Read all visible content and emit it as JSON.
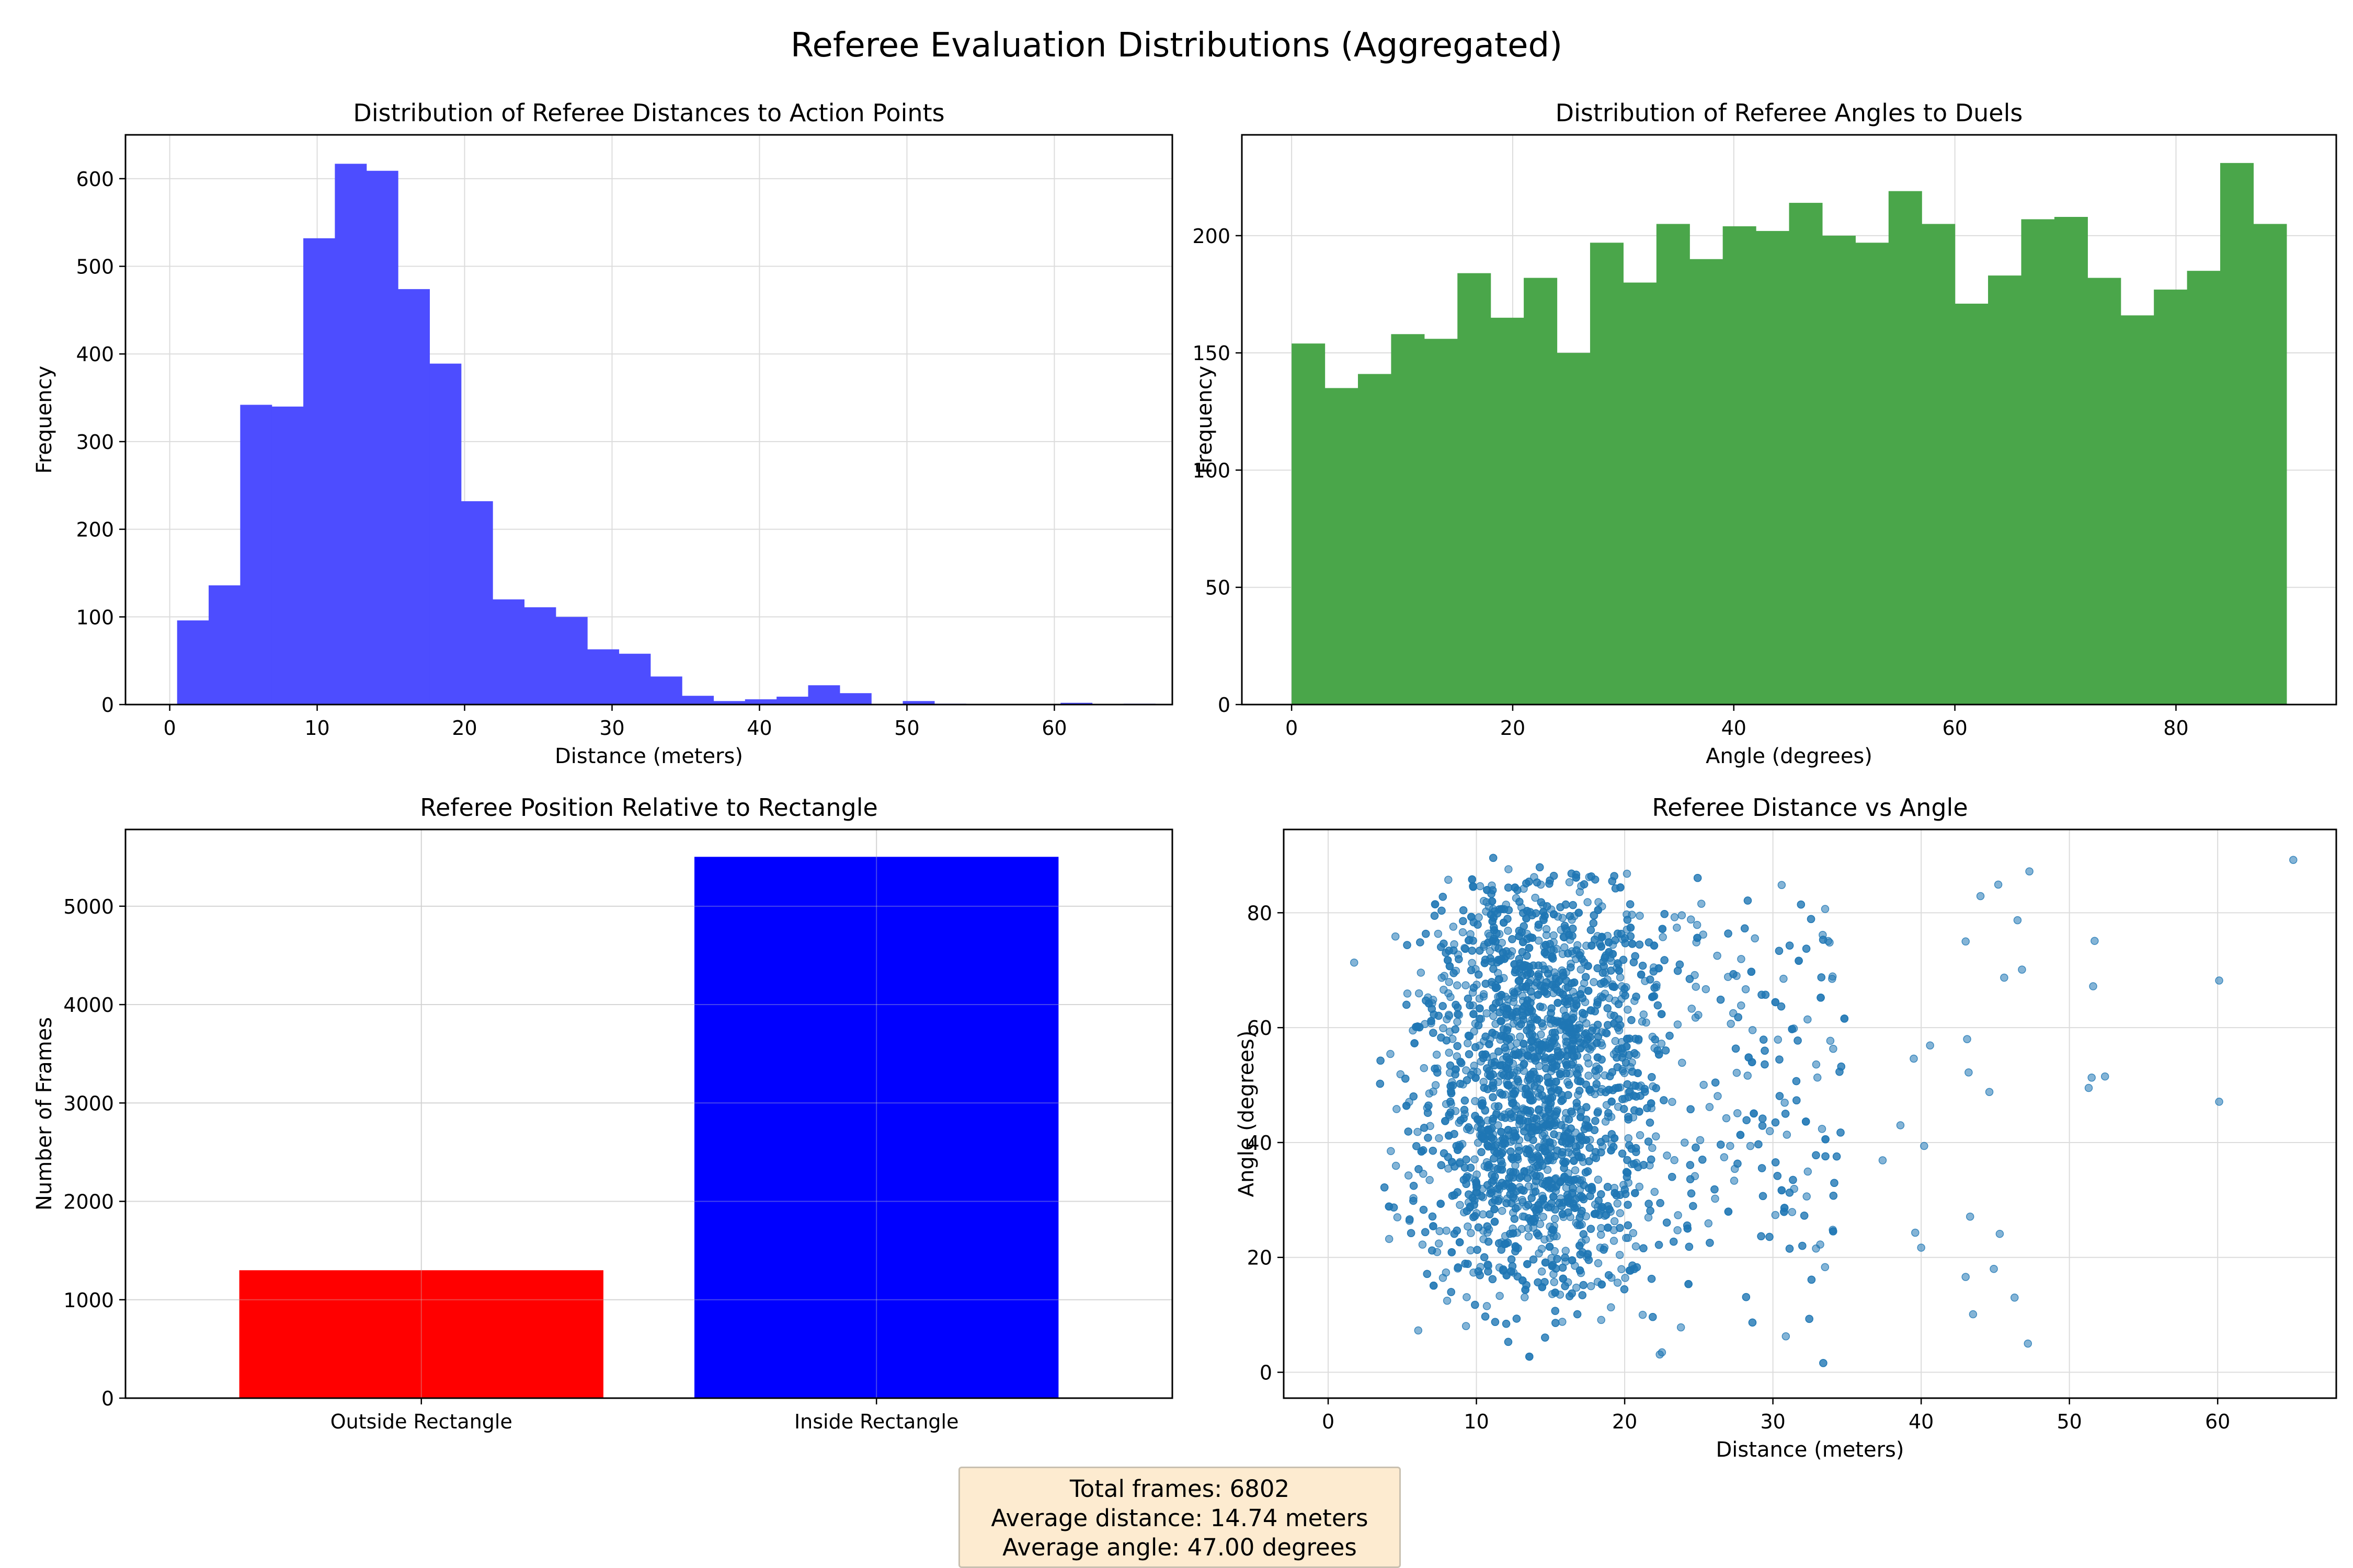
{
  "figure_title": "Referee Evaluation Distributions (Aggregated)",
  "colors": {
    "distance_hist": "#4d4dff",
    "angle_hist": "#4aa64a",
    "outside_bar": "#ff0000",
    "inside_bar": "#0000ff",
    "scatter": "#1f77b4",
    "stats_box": "#fdebd0"
  },
  "stats": {
    "total_frames": "Total frames: 6802",
    "avg_distance": "Average distance: 14.74 meters",
    "avg_angle": "Average angle: 47.00 degrees"
  },
  "chart_data": [
    {
      "id": "distance",
      "type": "bar",
      "subtype": "histogram",
      "title": "Distribution of Referee Distances to Action Points",
      "xlabel": "Distance (meters)",
      "ylabel": "Frequency",
      "xlim": [
        -3,
        68
      ],
      "ylim": [
        0,
        650
      ],
      "xticks": [
        0,
        10,
        20,
        30,
        40,
        50,
        60
      ],
      "yticks": [
        0,
        100,
        200,
        300,
        400,
        500,
        600
      ],
      "grid": true,
      "bins": {
        "start": 0.5,
        "width": 2.14,
        "values": [
          96,
          136,
          342,
          340,
          532,
          617,
          609,
          474,
          389,
          232,
          120,
          111,
          100,
          63,
          58,
          32,
          10,
          4,
          6,
          9,
          22,
          13,
          0,
          4,
          1,
          0,
          0,
          0,
          2,
          0,
          1
        ]
      }
    },
    {
      "id": "angle",
      "type": "bar",
      "subtype": "histogram",
      "title": "Distribution of Referee Angles to Duels",
      "xlabel": "Angle (degrees)",
      "ylabel": "Frequency",
      "xlim": [
        -4.5,
        94.5
      ],
      "ylim": [
        0,
        243
      ],
      "xticks": [
        0,
        20,
        40,
        60,
        80
      ],
      "yticks": [
        0,
        50,
        100,
        150,
        200
      ],
      "grid": true,
      "bins": {
        "start": 0,
        "width": 3,
        "values": [
          154,
          135,
          141,
          158,
          156,
          184,
          165,
          182,
          150,
          197,
          180,
          205,
          190,
          204,
          202,
          214,
          200,
          197,
          219,
          205,
          171,
          183,
          207,
          208,
          182,
          166,
          177,
          185,
          231,
          205
        ]
      }
    },
    {
      "id": "position",
      "type": "bar",
      "title": "Referee Position Relative to Rectangle",
      "xlabel": "",
      "ylabel": "Number of Frames",
      "categories": [
        "Outside Rectangle",
        "Inside Rectangle"
      ],
      "values": [
        1300,
        5502
      ],
      "ylim": [
        0,
        5780
      ],
      "yticks": [
        0,
        1000,
        2000,
        3000,
        4000,
        5000
      ],
      "grid": true
    },
    {
      "id": "scatter",
      "type": "scatter",
      "title": "Referee Distance vs Angle",
      "xlabel": "Distance (meters)",
      "ylabel": "Angle (degrees)",
      "xlim": [
        -3,
        68
      ],
      "ylim": [
        -4.5,
        94.5
      ],
      "xticks": [
        0,
        10,
        20,
        30,
        40,
        50,
        60
      ],
      "yticks": [
        0,
        20,
        40,
        60,
        80
      ],
      "grid": true,
      "point_count": 6802,
      "points": [
        [
          65.1,
          89.2
        ],
        [
          60.1,
          68.2
        ],
        [
          60.1,
          47.1
        ],
        [
          51.7,
          75.1
        ],
        [
          51.6,
          67.2
        ],
        [
          51.3,
          49.5
        ],
        [
          51.5,
          51.3
        ],
        [
          52.4,
          51.5
        ],
        [
          47.2,
          5.0
        ],
        [
          46.3,
          13.0
        ],
        [
          44.9,
          18.0
        ],
        [
          43.5,
          10.1
        ],
        [
          43.0,
          16.6
        ],
        [
          43.3,
          27.1
        ],
        [
          45.3,
          24.1
        ],
        [
          40.2,
          39.4
        ],
        [
          40.0,
          21.7
        ],
        [
          39.6,
          24.3
        ],
        [
          37.4,
          36.9
        ],
        [
          38.6,
          43.0
        ],
        [
          39.5,
          54.6
        ],
        [
          40.6,
          56.9
        ],
        [
          43.2,
          52.2
        ],
        [
          43.1,
          58.0
        ],
        [
          44.6,
          48.8
        ],
        [
          43.0,
          75.0
        ],
        [
          44.0,
          82.9
        ],
        [
          45.2,
          84.9
        ],
        [
          46.5,
          78.7
        ],
        [
          47.3,
          87.2
        ],
        [
          45.6,
          68.7
        ],
        [
          46.8,
          70.1
        ]
      ]
    }
  ]
}
